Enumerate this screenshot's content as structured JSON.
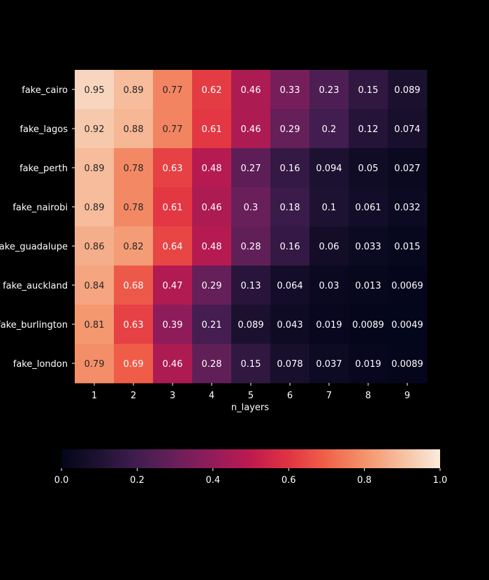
{
  "chart_data": {
    "type": "heatmap",
    "xlabel": "n_layers",
    "ylabel": "",
    "x": [
      "1",
      "2",
      "3",
      "4",
      "5",
      "6",
      "7",
      "8",
      "9"
    ],
    "y": [
      "fake_cairo",
      "fake_lagos",
      "fake_perth",
      "fake_nairobi",
      "fake_guadalupe",
      "fake_auckland",
      "fake_burlington",
      "fake_london"
    ],
    "values": [
      [
        0.95,
        0.89,
        0.77,
        0.62,
        0.46,
        0.33,
        0.23,
        0.15,
        0.089
      ],
      [
        0.92,
        0.88,
        0.77,
        0.61,
        0.46,
        0.29,
        0.2,
        0.12,
        0.074
      ],
      [
        0.89,
        0.78,
        0.63,
        0.48,
        0.27,
        0.16,
        0.094,
        0.05,
        0.027
      ],
      [
        0.89,
        0.78,
        0.61,
        0.46,
        0.3,
        0.18,
        0.1,
        0.061,
        0.032
      ],
      [
        0.86,
        0.82,
        0.64,
        0.48,
        0.28,
        0.16,
        0.06,
        0.033,
        0.015
      ],
      [
        0.84,
        0.68,
        0.47,
        0.29,
        0.13,
        0.064,
        0.03,
        0.013,
        0.0069
      ],
      [
        0.81,
        0.63,
        0.39,
        0.21,
        0.089,
        0.043,
        0.019,
        0.0089,
        0.0049
      ],
      [
        0.79,
        0.69,
        0.46,
        0.28,
        0.15,
        0.078,
        0.037,
        0.019,
        0.0089
      ]
    ],
    "labels": [
      [
        "0.95",
        "0.89",
        "0.77",
        "0.62",
        "0.46",
        "0.33",
        "0.23",
        "0.15",
        "0.089"
      ],
      [
        "0.92",
        "0.88",
        "0.77",
        "0.61",
        "0.46",
        "0.29",
        "0.2",
        "0.12",
        "0.074"
      ],
      [
        "0.89",
        "0.78",
        "0.63",
        "0.48",
        "0.27",
        "0.16",
        "0.094",
        "0.05",
        "0.027"
      ],
      [
        "0.89",
        "0.78",
        "0.61",
        "0.46",
        "0.3",
        "0.18",
        "0.1",
        "0.061",
        "0.032"
      ],
      [
        "0.86",
        "0.82",
        "0.64",
        "0.48",
        "0.28",
        "0.16",
        "0.06",
        "0.033",
        "0.015"
      ],
      [
        "0.84",
        "0.68",
        "0.47",
        "0.29",
        "0.13",
        "0.064",
        "0.03",
        "0.013",
        "0.0069"
      ],
      [
        "0.81",
        "0.63",
        "0.39",
        "0.21",
        "0.089",
        "0.043",
        "0.019",
        "0.0089",
        "0.0049"
      ],
      [
        "0.79",
        "0.69",
        "0.46",
        "0.28",
        "0.15",
        "0.078",
        "0.037",
        "0.019",
        "0.0089"
      ]
    ],
    "colorbar": {
      "range": [
        0.0,
        1.0
      ],
      "ticks": [
        0.0,
        0.2,
        0.4,
        0.6,
        0.8,
        1.0
      ],
      "tick_labels": [
        "0.0",
        "0.2",
        "0.4",
        "0.6",
        "0.8",
        "1.0"
      ],
      "colormap": "rocket",
      "orientation": "horizontal"
    },
    "background": "#000000",
    "text_color": "#ffffff"
  }
}
